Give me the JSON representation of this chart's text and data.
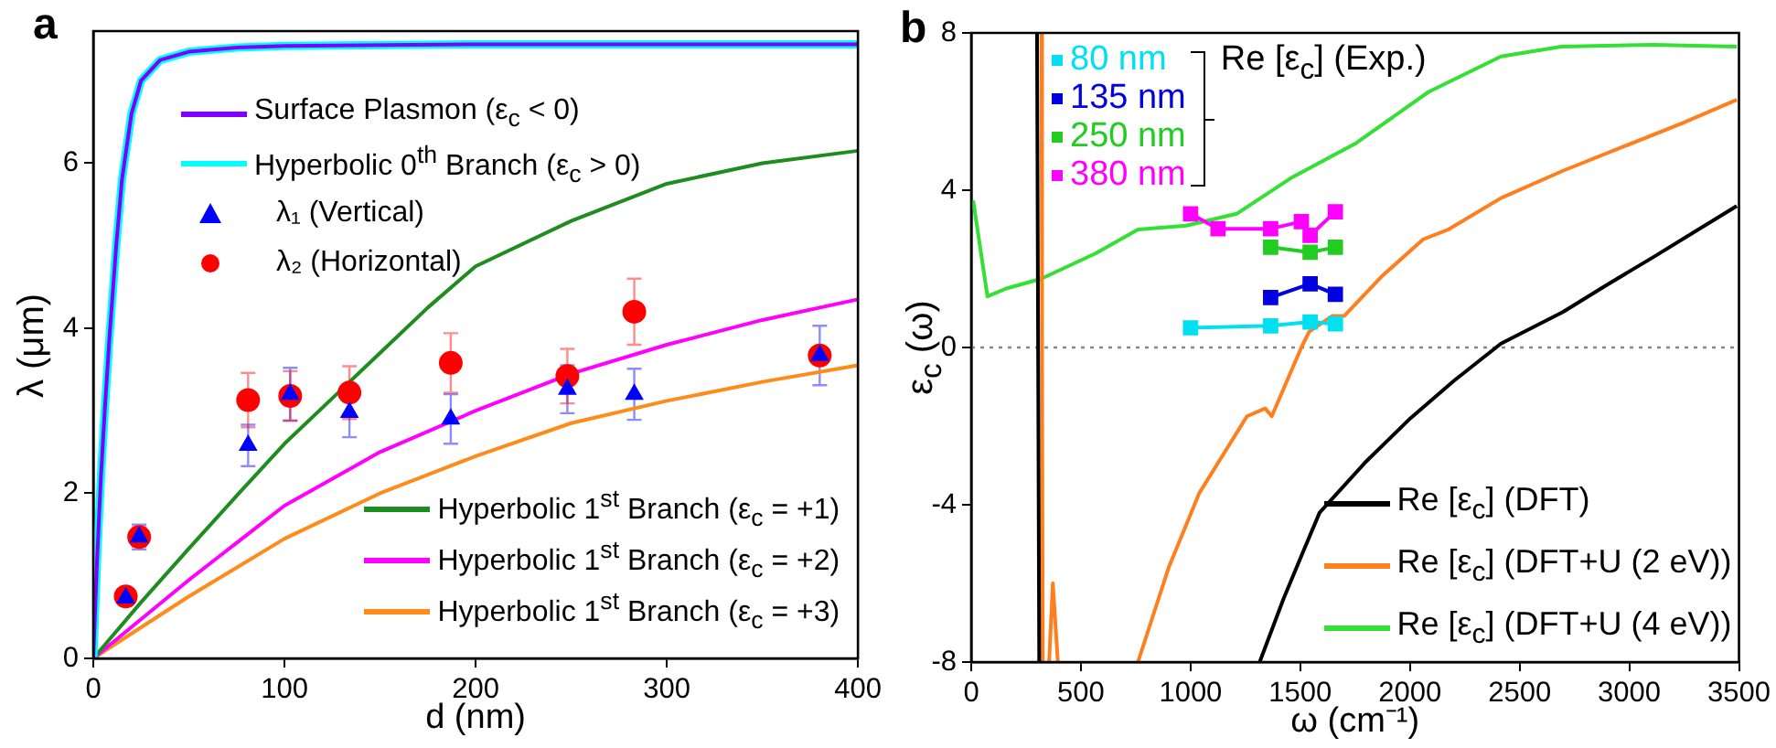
{
  "chart_data": [
    {
      "type": "line",
      "title": "a",
      "xlabel": "d (nm)",
      "ylabel": "λ (μm)",
      "xlim": [
        0,
        400
      ],
      "ylim": [
        0,
        7.6
      ],
      "xticks": [
        0,
        100,
        200,
        300,
        400
      ],
      "yticks": [
        0,
        2,
        4,
        6
      ],
      "legend": "bottom right",
      "marker": "none",
      "series": [
        {
          "name": "Surface Plasmon (ε$_{c}$ < 0)",
          "color": "#8000ff",
          "x": [
            0,
            2,
            4,
            6,
            8.5,
            12,
            15,
            20,
            25,
            35,
            50,
            75,
            100,
            200,
            400
          ],
          "values": [
            0,
            1.2,
            2.2,
            3.0,
            3.9,
            5.0,
            5.8,
            6.6,
            7.0,
            7.25,
            7.35,
            7.4,
            7.42,
            7.44,
            7.44
          ]
        },
        {
          "name": "Hyperbolic 0$^{th}$ Branch (ε$_{c}$ > 0)",
          "color": "#00ffff",
          "x": [
            0,
            2,
            4,
            6,
            8.5,
            12,
            15,
            20,
            25,
            35,
            50,
            75,
            100,
            200,
            400
          ],
          "values": [
            0,
            1.2,
            2.2,
            3.0,
            3.9,
            5.0,
            5.8,
            6.6,
            7.0,
            7.25,
            7.35,
            7.4,
            7.42,
            7.44,
            7.44
          ]
        },
        {
          "name": "λ₁ (Vertical)",
          "type": "scatter",
          "marker": "triangle",
          "color": "#0000ff",
          "x": [
            17,
            24,
            81,
            103,
            134,
            187,
            248,
            283,
            380
          ],
          "values": [
            0.73,
            1.47,
            2.58,
            3.2,
            2.98,
            2.9,
            3.26,
            3.2,
            3.67
          ],
          "errors": [
            null,
            0.15,
            0.25,
            0.32,
            0.3,
            0.3,
            0.29,
            0.31,
            0.36
          ]
        },
        {
          "name": "λ₂ (Horizontal)",
          "type": "scatter",
          "marker": "circle",
          "color": "#ff0000",
          "x": [
            17,
            24,
            81,
            103,
            134,
            187,
            248,
            283,
            380
          ],
          "values": [
            0.75,
            1.47,
            3.13,
            3.18,
            3.22,
            3.58,
            3.42,
            4.2,
            3.67
          ],
          "errors": [
            null,
            0.12,
            0.33,
            0.3,
            0.32,
            0.36,
            0.33,
            0.4,
            null
          ]
        },
        {
          "name": "Hyperbolic 1$^{st}$ Branch (ε$_{c}$ = +1)",
          "color": "#1e8c1e",
          "x": [
            0,
            25,
            50,
            75,
            100,
            125,
            150,
            175,
            200,
            250,
            300,
            350,
            400
          ],
          "values": [
            0,
            0.68,
            1.33,
            1.97,
            2.6,
            3.15,
            3.7,
            4.25,
            4.75,
            5.3,
            5.75,
            6.0,
            6.15
          ]
        },
        {
          "name": "Hyperbolic 1$^{st}$ Branch (ε$_{c}$ = +2)",
          "color": "#ff00ff",
          "x": [
            0,
            50,
            100,
            150,
            200,
            250,
            300,
            350,
            400
          ],
          "values": [
            0,
            0.95,
            1.85,
            2.5,
            3.0,
            3.45,
            3.8,
            4.1,
            4.35
          ]
        },
        {
          "name": "Hyperbolic 1$^{st}$ Branch (ε$_{c}$ = +3)",
          "color": "#ff8c1a",
          "x": [
            0,
            50,
            100,
            150,
            200,
            250,
            300,
            350,
            400
          ],
          "values": [
            0,
            0.75,
            1.45,
            2.0,
            2.45,
            2.85,
            3.12,
            3.35,
            3.55
          ]
        }
      ]
    },
    {
      "type": "line",
      "title": "b",
      "xlabel": "ω (cm⁻¹)",
      "ylabel": "ε$_{c}$ (ω)",
      "xlim": [
        0,
        3500
      ],
      "ylim": [
        -8,
        8
      ],
      "xticks": [
        0,
        500,
        1000,
        1500,
        2000,
        2500,
        3000,
        3500
      ],
      "yticks": [
        -8,
        -4,
        0,
        4,
        8
      ],
      "legend": "top right",
      "marker": "none",
      "annotations": [
        "Re [ε$_{c}$] (Exp.)"
      ],
      "ref_lines": [
        {
          "axis": "y",
          "value": 0,
          "color": "#888888",
          "line_style": "dotted"
        }
      ],
      "series": [
        {
          "name": "80 nm",
          "marker": "square",
          "color": "#00e0f0",
          "x": [
            1000,
            1365,
            1545,
            1660
          ],
          "values": [
            0.5,
            0.55,
            0.65,
            0.6
          ]
        },
        {
          "name": "135 nm",
          "marker": "square",
          "color": "#0000e0",
          "x": [
            1365,
            1545,
            1660
          ],
          "values": [
            1.27,
            1.62,
            1.35
          ]
        },
        {
          "name": "250 nm",
          "marker": "square",
          "color": "#22cc22",
          "x": [
            1365,
            1545,
            1660
          ],
          "values": [
            2.55,
            2.42,
            2.55
          ]
        },
        {
          "name": "380 nm",
          "marker": "square",
          "color": "#ff00ff",
          "x": [
            1000,
            1125,
            1365,
            1505,
            1545,
            1660
          ],
          "values": [
            3.4,
            3.02,
            3.02,
            3.2,
            2.85,
            3.45
          ]
        },
        {
          "name": "Re [ε$_{c}$] (DFT)",
          "color": "#000000",
          "x": [
            300,
            305,
            310,
            800,
            1315,
            1423,
            1505,
            1588,
            1800,
            2002,
            2200,
            2415,
            2697,
            2900,
            3110,
            3490
          ],
          "values": [
            8,
            0,
            -8,
            null,
            -8,
            -6.4,
            -5.3,
            -4.2,
            -2.9,
            -1.8,
            -0.85,
            0.1,
            0.9,
            1.6,
            2.3,
            3.6
          ]
        },
        {
          "name": "Re [ε$_{c}$] (DFT+U (2 eV))",
          "color": "#ff7f1e",
          "x": [
            320,
            323,
            326,
            340,
            355,
            372,
            395,
            500,
            760,
            900,
            1040,
            1257,
            1340,
            1370,
            1505,
            1540,
            1645,
            1700,
            1870,
            2060,
            2175,
            2415,
            2700,
            2970,
            3240,
            3490
          ],
          "values": [
            8,
            0,
            -8,
            null,
            -8,
            -6,
            -8,
            null,
            -8,
            -5.6,
            -3.7,
            -1.75,
            -1.55,
            -1.75,
            0,
            0.4,
            0.8,
            0.8,
            1.8,
            2.75,
            3.0,
            3.8,
            4.5,
            5.1,
            5.7,
            6.3
          ]
        },
        {
          "name": "Re [ε$_{c}$] (DFT+U (4 eV))",
          "color": "#33e033",
          "x": [
            0,
            10,
            74,
            160,
            320,
            570,
            760,
            980,
            1210,
            1455,
            1755,
            2085,
            2415,
            2690,
            3110,
            3490
          ],
          "values": [
            3.5,
            3.7,
            1.3,
            1.5,
            1.75,
            2.4,
            3.0,
            3.1,
            3.4,
            4.3,
            5.2,
            6.5,
            7.4,
            7.65,
            7.7,
            7.65
          ]
        }
      ]
    }
  ]
}
